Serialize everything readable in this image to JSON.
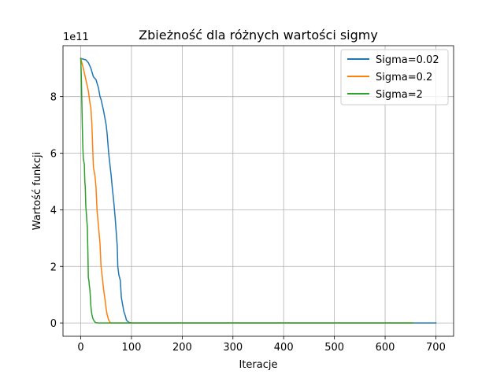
{
  "chart_data": {
    "type": "line",
    "title": "Zbieżność dla różnych wartości sigmy",
    "xlabel": "Iteracje",
    "ylabel": "Wartość funkcji",
    "y_offset_label": "1e11",
    "xlim": [
      -35,
      735
    ],
    "ylim": [
      -0.47,
      9.8
    ],
    "xticks": [
      0,
      100,
      200,
      300,
      400,
      500,
      600,
      700
    ],
    "yticks": [
      0,
      2,
      4,
      6,
      8
    ],
    "grid": true,
    "legend_position": "top-right",
    "series": [
      {
        "name": "Sigma=0.02",
        "color": "#1f77b4",
        "x": [
          0,
          10,
          15,
          20,
          25,
          30,
          35,
          38,
          40,
          45,
          50,
          52,
          55,
          60,
          62,
          65,
          68,
          70,
          72,
          73,
          75,
          78,
          80,
          85,
          88,
          90,
          95,
          100,
          700
        ],
        "y": [
          9.35,
          9.3,
          9.2,
          9.0,
          8.7,
          8.6,
          8.3,
          8.0,
          7.9,
          7.5,
          7.0,
          6.7,
          6.0,
          5.2,
          4.8,
          4.3,
          3.7,
          3.2,
          2.7,
          2.0,
          1.7,
          1.5,
          0.9,
          0.4,
          0.25,
          0.1,
          0.02,
          0.0,
          0.0
        ]
      },
      {
        "name": "Sigma=0.2",
        "color": "#ff7f0e",
        "x": [
          0,
          5,
          10,
          15,
          18,
          20,
          22,
          25,
          28,
          30,
          32,
          35,
          38,
          40,
          42,
          45,
          48,
          50,
          52,
          55,
          58,
          60,
          655
        ],
        "y": [
          9.35,
          9.0,
          8.6,
          8.2,
          7.8,
          7.6,
          7.0,
          5.5,
          5.2,
          4.8,
          4.0,
          3.4,
          2.8,
          2.0,
          1.7,
          1.2,
          0.8,
          0.5,
          0.3,
          0.1,
          0.02,
          0.0,
          0.0
        ]
      },
      {
        "name": "Sigma=2",
        "color": "#2ca02c",
        "x": [
          0,
          1,
          2,
          3,
          4,
          5,
          7,
          8,
          9,
          10,
          11,
          12,
          13,
          14,
          15,
          16,
          17,
          18,
          19,
          20,
          21,
          22,
          24,
          26,
          28,
          30,
          35,
          40,
          50,
          60,
          655
        ],
        "y": [
          9.35,
          8.8,
          8.0,
          7.0,
          6.3,
          5.8,
          5.6,
          5.0,
          4.8,
          4.1,
          3.9,
          3.6,
          3.4,
          2.5,
          1.6,
          1.5,
          1.3,
          1.2,
          0.9,
          0.6,
          0.4,
          0.3,
          0.15,
          0.08,
          0.03,
          0.01,
          0.0,
          0.0,
          0.0,
          0.0,
          0.0
        ]
      }
    ]
  }
}
